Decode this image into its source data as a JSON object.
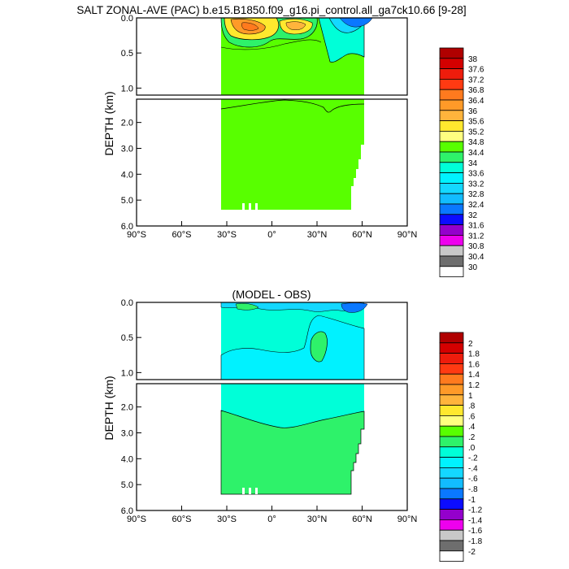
{
  "chart_data": [
    {
      "type": "contour",
      "title": "SALT ZONAL-AVE (PAC) b.e15.B1850.f09_g16.pi_control.all_ga7ck10.66 [9-28]",
      "ylabel": "DEPTH (km)",
      "x_ticks": [
        "90°S",
        "60°S",
        "30°S",
        "0°",
        "30°N",
        "60°N",
        "90°N"
      ],
      "xlim": [
        -90,
        90
      ],
      "upper_y_ticks": [
        "0.0",
        "0.5",
        "1.0"
      ],
      "upper_ylim": [
        0,
        1.1
      ],
      "lower_y_ticks": [
        "2.0",
        "3.0",
        "4.0",
        "5.0",
        "6.0"
      ],
      "lower_ylim": [
        1.1,
        6.0
      ],
      "colorbar_labels": [
        "38",
        "37.6",
        "37.2",
        "36.8",
        "36.4",
        "36",
        "35.6",
        "35.2",
        "34.8",
        "34.4",
        "34",
        "33.6",
        "33.2",
        "32.8",
        "32.4",
        "32",
        "31.6",
        "31.2",
        "30.8",
        "30.4",
        "30"
      ],
      "colorbar_colors": [
        "#b00000",
        "#d40000",
        "#ee1c0c",
        "#ff3a12",
        "#ff7a1e",
        "#ff9a28",
        "#ffb43c",
        "#ffe82e",
        "#ffff80",
        "#58ff00",
        "#2ef26a",
        "#00ffd8",
        "#00f2ff",
        "#14d8ff",
        "#12bcff",
        "#0a78ff",
        "#0c0cff",
        "#9400cc",
        "#ee00ee",
        "#c8c8c8",
        "#6e6e6e",
        "#ffffff"
      ],
      "dominant_value_range": [
        34.4,
        34.8
      ]
    },
    {
      "type": "contour",
      "title": "(MODEL - OBS)",
      "ylabel": "DEPTH (km)",
      "x_ticks": [
        "90°S",
        "60°S",
        "30°S",
        "0°",
        "30°N",
        "60°N",
        "90°N"
      ],
      "xlim": [
        -90,
        90
      ],
      "upper_y_ticks": [
        "0.0",
        "0.5",
        "1.0"
      ],
      "upper_ylim": [
        0,
        1.1
      ],
      "lower_y_ticks": [
        "2.0",
        "3.0",
        "4.0",
        "5.0",
        "6.0"
      ],
      "lower_ylim": [
        1.1,
        6.0
      ],
      "colorbar_labels": [
        "2",
        "1.8",
        "1.6",
        "1.4",
        "1.2",
        "1",
        ".8",
        ".6",
        ".4",
        ".2",
        ".0",
        "-.2",
        "-.4",
        "-.6",
        "-.8",
        "-1",
        "-1.2",
        "-1.4",
        "-1.6",
        "-1.8",
        "-2"
      ],
      "colorbar_colors": [
        "#b00000",
        "#d40000",
        "#ee1c0c",
        "#ff3a12",
        "#ff7a1e",
        "#ff9a28",
        "#ffb43c",
        "#ffe82e",
        "#ffff80",
        "#58ff00",
        "#2ef26a",
        "#00ffd8",
        "#00f2ff",
        "#14d8ff",
        "#12bcff",
        "#0a78ff",
        "#0c0cff",
        "#9400cc",
        "#ee00ee",
        "#c8c8c8",
        "#6e6e6e",
        "#ffffff"
      ]
    }
  ]
}
